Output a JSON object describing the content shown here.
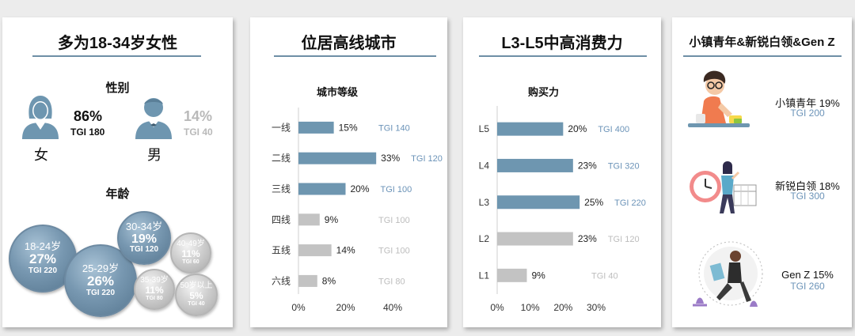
{
  "colors": {
    "primary_bar": "#6e96b0",
    "secondary_bar": "#c3c3c3",
    "tgi_blue": "#6b93b8",
    "tgi_gray": "#bdbdbd",
    "rule": "#6e8fa6"
  },
  "card1": {
    "title": "多为18-34岁女性",
    "gender_title": "性别",
    "female": {
      "pct": "86%",
      "tgi": "TGI 180",
      "label": "女",
      "icon": "female-person-icon"
    },
    "male": {
      "pct": "14%",
      "tgi": "TGI 40",
      "label": "男",
      "icon": "male-person-icon"
    },
    "age_title": "年龄"
  },
  "card2": {
    "title": "位居高线城市",
    "chart_title": "城市等级"
  },
  "card3": {
    "title": "L3-L5中高消费力",
    "chart_title": "购买力"
  },
  "card4": {
    "title": "小镇青年&新锐白领&Gen Z",
    "personas": [
      {
        "label": "小镇青年 19%",
        "tgi": "TGI 200",
        "icon": "small-town-youth-illustration"
      },
      {
        "label": "新锐白领 18%",
        "tgi": "TGI 300",
        "icon": "white-collar-clock-illustration"
      },
      {
        "label": "Gen Z  15%",
        "tgi": "TGI 260",
        "icon": "gen-z-reading-illustration"
      }
    ]
  },
  "chart_data": [
    {
      "type": "bubble",
      "title": "年龄",
      "items": [
        {
          "category": "18-24岁",
          "value": 27,
          "label": "27%",
          "tgi": "TGI 220",
          "highlight": true
        },
        {
          "category": "25-29岁",
          "value": 26,
          "label": "26%",
          "tgi": "TGI 220",
          "highlight": true
        },
        {
          "category": "30-34岁",
          "value": 19,
          "label": "19%",
          "tgi": "TGI 120",
          "highlight": true
        },
        {
          "category": "35-39岁",
          "value": 11,
          "label": "11%",
          "tgi": "TGI 80",
          "highlight": false
        },
        {
          "category": "40-49岁",
          "value": 11,
          "label": "11%",
          "tgi": "TGI 60",
          "highlight": false
        },
        {
          "category": "50岁以上",
          "value": 5,
          "label": "5%",
          "tgi": "TGI 40",
          "highlight": false
        }
      ]
    },
    {
      "type": "bar",
      "orientation": "horizontal",
      "title": "城市等级",
      "categories": [
        "一线",
        "二线",
        "三线",
        "四线",
        "五线",
        "六线"
      ],
      "values": [
        15,
        33,
        20,
        9,
        14,
        8
      ],
      "value_labels": [
        "15%",
        "33%",
        "20%",
        "9%",
        "14%",
        "8%"
      ],
      "tgi": [
        "TGI 140",
        "TGI 120",
        "TGI 100",
        "TGI 100",
        "TGI 100",
        "TGI 80"
      ],
      "highlight": [
        true,
        true,
        true,
        false,
        false,
        false
      ],
      "xlim": [
        0,
        40
      ],
      "ticks": [
        0,
        20,
        40
      ],
      "tick_labels": [
        "0%",
        "20%",
        "40%"
      ]
    },
    {
      "type": "bar",
      "orientation": "horizontal",
      "title": "购买力",
      "categories": [
        "L5",
        "L4",
        "L3",
        "L2",
        "L1"
      ],
      "values": [
        20,
        23,
        25,
        23,
        9
      ],
      "value_labels": [
        "20%",
        "23%",
        "25%",
        "23%",
        "9%"
      ],
      "tgi": [
        "TGI 400",
        "TGI 320",
        "TGI 220",
        "TGI 120",
        "TGI 40"
      ],
      "highlight": [
        true,
        true,
        true,
        false,
        false
      ],
      "xlim": [
        0,
        30
      ],
      "ticks": [
        0,
        10,
        20,
        30
      ],
      "tick_labels": [
        "0%",
        "10%",
        "20%",
        "30%"
      ]
    }
  ]
}
